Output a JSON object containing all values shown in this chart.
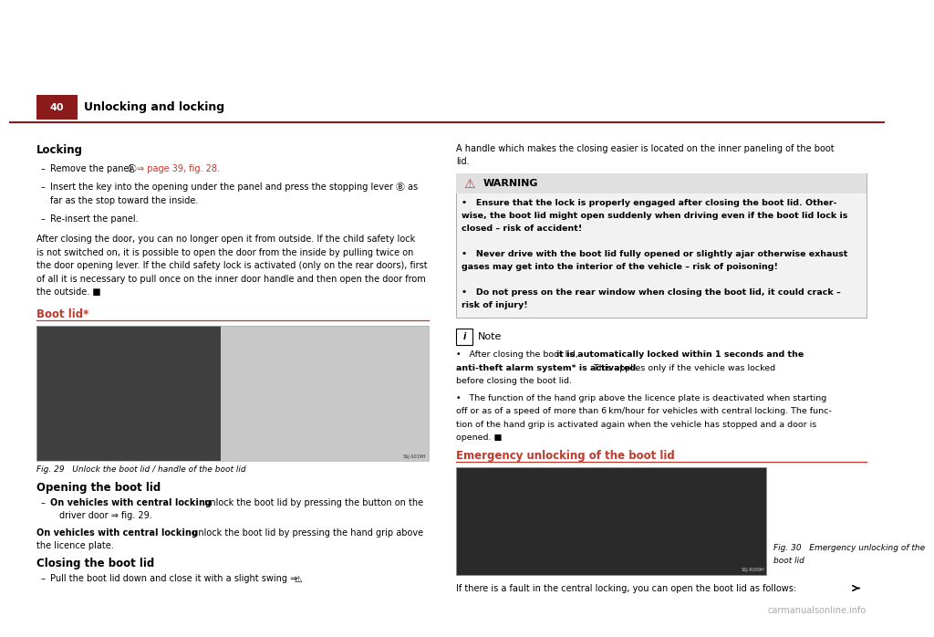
{
  "page_number": "40",
  "page_header": "Unlocking and locking",
  "bg_color": "#ffffff",
  "header_bar_color": "#8B1A1A",
  "red_color": "#c0392b",
  "dark_red": "#8B1A1A",
  "section_locking_title": "Locking",
  "boot_lid_title": "Boot lid*",
  "right_intro_line1": "A handle which makes the closing easier is located on the inner paneling of the boot",
  "right_intro_line2": "lid.",
  "warning_title": "WARNING",
  "warning_lines": [
    "•   Ensure that the lock is properly engaged after closing the boot lid. Other-",
    "wise, the boot lid might open suddenly when driving even if the boot lid lock is",
    "closed – risk of accident!",
    "",
    "•   Never drive with the boot lid fully opened or slightly ajar otherwise exhaust",
    "gases may get into the interior of the vehicle – risk of poisoning!",
    "",
    "•   Do not press on the rear window when closing the boot lid, it could crack –",
    "risk of injury!"
  ],
  "note_title": "Note",
  "note_line1a": "•   After closing the boot lid, ",
  "note_line1b": "it is automatically locked within 1 seconds and the",
  "note_line2": "anti-theft alarm system* is activated.",
  "note_line2b": " This applies only if the vehicle was locked",
  "note_line3": "before closing the boot lid.",
  "note_line4": "•   The function of the hand grip above the licence plate is deactivated when starting",
  "note_line5": "off or as of a speed of more than 6 km/hour for vehicles with central locking. The func-",
  "note_line6": "tion of the hand grip is activated again when the vehicle has stopped and a door is",
  "note_line7": "opened. ■",
  "emergency_title": "Emergency unlocking of the boot lid",
  "opening_boot_lid_title": "Opening the boot lid",
  "closing_boot_lid_title": "Closing the boot lid",
  "fig29_caption": "Fig. 29   Unlock the boot lid / handle of the boot lid",
  "fig30_caption_line1": "Fig. 30   Emergency unlocking of the",
  "fig30_caption_line2": "boot lid",
  "footer_text": "carmanualsonline.info",
  "body_lines": [
    "After closing the door, you can no longer open it from outside. If the child safety lock",
    "is not switched on, it is possible to open the door from the inside by pulling twice on",
    "the door opening lever. If the child safety lock is activated (only on the rear doors), first",
    "of all it is necessary to pull once on the inner door handle and then open the door from",
    "the outside. ■"
  ]
}
